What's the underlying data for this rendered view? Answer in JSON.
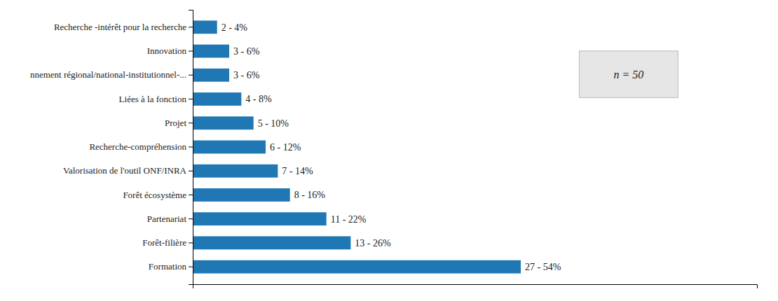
{
  "chart_data": {
    "type": "bar",
    "orientation": "horizontal",
    "categories": [
      "Recherche -intérêt pour la recherche",
      "Innovation",
      "nnement régional/national-institutionnel-...",
      "Liées à la fonction",
      "Projet",
      "Recherche-compréhension",
      "Valorisation de l'outil ONF/INRA",
      "Forêt écosystème",
      "Partenariat",
      "Forêt-filière",
      "Formation"
    ],
    "values": [
      2,
      3,
      3,
      4,
      5,
      6,
      7,
      8,
      11,
      13,
      27
    ],
    "value_labels": [
      "2 - 4%",
      "3 - 6%",
      "3 - 6%",
      "4 - 8%",
      "5 - 10%",
      "6 - 12%",
      "7 - 14%",
      "8 - 16%",
      "11 - 22%",
      "13 - 26%",
      "27 - 54%"
    ],
    "data_labels": true,
    "xlim": [
      0,
      46.44
    ],
    "xticks": [],
    "tick_labels": "y",
    "grid": false,
    "annotations": [
      "n = 50"
    ]
  }
}
